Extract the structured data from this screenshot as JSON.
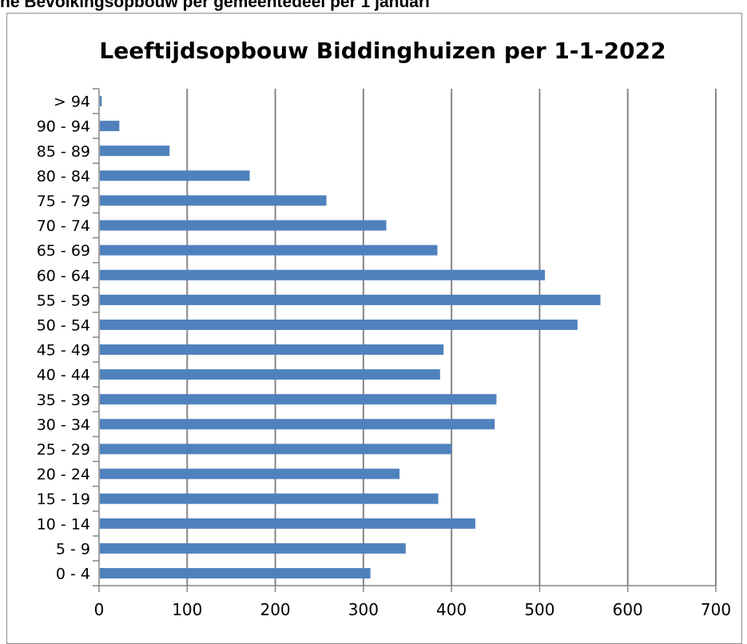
{
  "page": {
    "heading": "ne Bevolkingsopbouw per gemeentedeel per 1 januari"
  },
  "colors": {
    "bar": "#4F81BD",
    "grid": "#868686",
    "axis": "#868686",
    "text": "#000000"
  },
  "chart_data": {
    "type": "bar",
    "orientation": "horizontal",
    "title": "Leeftijdsopbouw Biddinghuizen per 1-1-2022",
    "xlabel": "",
    "ylabel": "",
    "xlim": [
      0,
      700
    ],
    "x_ticks": [
      "0",
      "100",
      "200",
      "300",
      "400",
      "500",
      "600",
      "700"
    ],
    "grid": true,
    "legend": "none",
    "categories": [
      "0 - 4",
      "5 - 9",
      "10 - 14",
      "15 - 19",
      "20 - 24",
      "25 - 29",
      "30 - 34",
      "35 - 39",
      "40 - 44",
      "45 - 49",
      "50 - 54",
      "55 - 59",
      "60 - 64",
      "65 - 69",
      "70 - 74",
      "75 - 79",
      "80 - 84",
      "85 - 89",
      "90 - 94",
      "> 94"
    ],
    "values": [
      308,
      348,
      427,
      385,
      341,
      400,
      449,
      451,
      387,
      391,
      543,
      569,
      506,
      384,
      326,
      258,
      171,
      80,
      23,
      3
    ]
  }
}
